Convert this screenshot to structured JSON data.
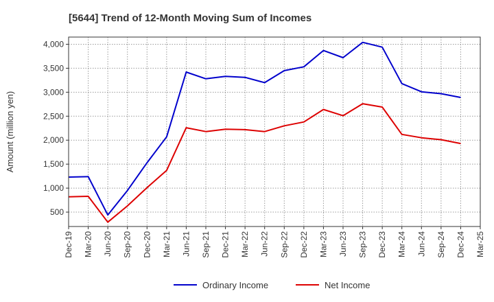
{
  "chart_data": {
    "type": "line",
    "title": "[5644]  Trend of 12-Month Moving Sum of Incomes",
    "xlabel": "",
    "ylabel": "Amount (million yen)",
    "ylim": [
      200,
      4150
    ],
    "yticks": [
      500,
      1000,
      1500,
      2000,
      2500,
      3000,
      3500,
      4000
    ],
    "ytick_labels": [
      "500",
      "1,000",
      "1,500",
      "2,000",
      "2,500",
      "3,000",
      "3,500",
      "4,000"
    ],
    "categories": [
      "Dec-19",
      "Mar-20",
      "Jun-20",
      "Sep-20",
      "Dec-20",
      "Mar-21",
      "Jun-21",
      "Sep-21",
      "Dec-21",
      "Mar-22",
      "Jun-22",
      "Sep-22",
      "Dec-22",
      "Mar-23",
      "Jun-23",
      "Sep-23",
      "Dec-23",
      "Mar-24",
      "Jun-24",
      "Sep-24",
      "Dec-24",
      "Mar-25"
    ],
    "grid": true,
    "legend_position": "bottom-center",
    "series": [
      {
        "name": "Ordinary Income",
        "color": "#0000cc",
        "values": [
          1230,
          1240,
          440,
          950,
          1530,
          2070,
          3420,
          3280,
          3330,
          3310,
          3200,
          3450,
          3530,
          3870,
          3720,
          4040,
          3940,
          3180,
          3010,
          2970,
          2890,
          null
        ]
      },
      {
        "name": "Net Income",
        "color": "#dd0000",
        "values": [
          820,
          830,
          290,
          630,
          1010,
          1370,
          2260,
          2180,
          2230,
          2220,
          2180,
          2300,
          2380,
          2640,
          2510,
          2760,
          2690,
          2120,
          2050,
          2010,
          1930,
          null
        ]
      }
    ]
  }
}
